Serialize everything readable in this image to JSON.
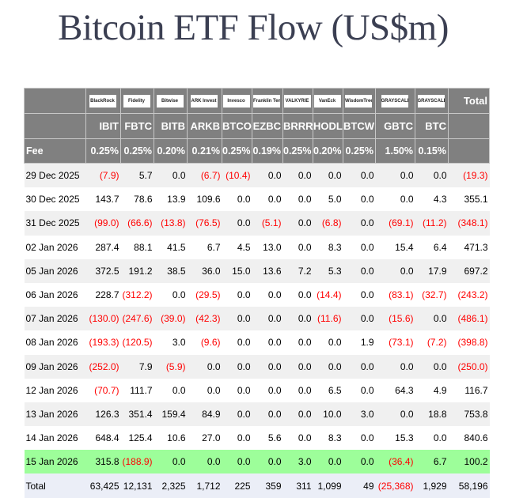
{
  "title": "Bitcoin ETF Flow (US$m)",
  "colors": {
    "header_bg": "#808080",
    "negative": "#ff0000",
    "highlight_row": "#9dfe9a",
    "total_row": "#ebeef7"
  },
  "issuers": [
    "BlackRock",
    "Fidelity",
    "Bitwise",
    "ARK Invest",
    "Invesco",
    "Franklin Templeton",
    "VALKYRIE",
    "VanEck",
    "WisdomTree",
    "GRAYSCALE",
    "GRAYSCALE"
  ],
  "total_header": "Total",
  "tickers": [
    "IBIT",
    "FBTC",
    "BITB",
    "ARKB",
    "BTCO",
    "EZBC",
    "BRRR",
    "HODL",
    "BTCW",
    "GBTC",
    "BTC"
  ],
  "fee_label": "Fee",
  "fees": [
    "0.25%",
    "0.25%",
    "0.20%",
    "0.21%",
    "0.25%",
    "0.19%",
    "0.25%",
    "0.20%",
    "0.25%",
    "1.50%",
    "0.15%"
  ],
  "rows": [
    {
      "date": "29 Dec 2025",
      "values": [
        "(7.9)",
        "5.7",
        "0.0",
        "(6.7)",
        "(10.4)",
        "0.0",
        "0.0",
        "0.0",
        "0.0",
        "0.0",
        "0.0",
        "(19.3)"
      ]
    },
    {
      "date": "30 Dec 2025",
      "values": [
        "143.7",
        "78.6",
        "13.9",
        "109.6",
        "0.0",
        "0.0",
        "0.0",
        "5.0",
        "0.0",
        "0.0",
        "4.3",
        "355.1"
      ]
    },
    {
      "date": "31 Dec 2025",
      "values": [
        "(99.0)",
        "(66.6)",
        "(13.8)",
        "(76.5)",
        "0.0",
        "(5.1)",
        "0.0",
        "(6.8)",
        "0.0",
        "(69.1)",
        "(11.2)",
        "(348.1)"
      ]
    },
    {
      "date": "02 Jan 2026",
      "values": [
        "287.4",
        "88.1",
        "41.5",
        "6.7",
        "4.5",
        "13.0",
        "0.0",
        "8.3",
        "0.0",
        "15.4",
        "6.4",
        "471.3"
      ]
    },
    {
      "date": "05 Jan 2026",
      "values": [
        "372.5",
        "191.2",
        "38.5",
        "36.0",
        "15.0",
        "13.6",
        "7.2",
        "5.3",
        "0.0",
        "0.0",
        "17.9",
        "697.2"
      ]
    },
    {
      "date": "06 Jan 2026",
      "values": [
        "228.7",
        "(312.2)",
        "0.0",
        "(29.5)",
        "0.0",
        "0.0",
        "0.0",
        "(14.4)",
        "0.0",
        "(83.1)",
        "(32.7)",
        "(243.2)"
      ]
    },
    {
      "date": "07 Jan 2026",
      "values": [
        "(130.0)",
        "(247.6)",
        "(39.0)",
        "(42.3)",
        "0.0",
        "0.0",
        "0.0",
        "(11.6)",
        "0.0",
        "(15.6)",
        "0.0",
        "(486.1)"
      ]
    },
    {
      "date": "08 Jan 2026",
      "values": [
        "(193.3)",
        "(120.5)",
        "3.0",
        "(9.6)",
        "0.0",
        "0.0",
        "0.0",
        "0.0",
        "1.9",
        "(73.1)",
        "(7.2)",
        "(398.8)"
      ]
    },
    {
      "date": "09 Jan 2026",
      "values": [
        "(252.0)",
        "7.9",
        "(5.9)",
        "0.0",
        "0.0",
        "0.0",
        "0.0",
        "0.0",
        "0.0",
        "0.0",
        "0.0",
        "(250.0)"
      ]
    },
    {
      "date": "12 Jan 2026",
      "values": [
        "(70.7)",
        "111.7",
        "0.0",
        "0.0",
        "0.0",
        "0.0",
        "0.0",
        "6.5",
        "0.0",
        "64.3",
        "4.9",
        "116.7"
      ]
    },
    {
      "date": "13 Jan 2026",
      "values": [
        "126.3",
        "351.4",
        "159.4",
        "84.9",
        "0.0",
        "0.0",
        "0.0",
        "10.0",
        "3.0",
        "0.0",
        "18.8",
        "753.8"
      ]
    },
    {
      "date": "14 Jan 2026",
      "values": [
        "648.4",
        "125.4",
        "10.6",
        "27.0",
        "0.0",
        "5.6",
        "0.0",
        "8.3",
        "0.0",
        "15.3",
        "0.0",
        "840.6"
      ]
    },
    {
      "date": "15 Jan 2026",
      "values": [
        "315.8",
        "(188.9)",
        "0.0",
        "0.0",
        "0.0",
        "0.0",
        "3.0",
        "0.0",
        "0.0",
        "(36.4)",
        "6.7",
        "100.2"
      ],
      "highlight": true
    }
  ],
  "total": {
    "label": "Total",
    "values": [
      "63,425",
      "12,131",
      "2,325",
      "1,712",
      "225",
      "359",
      "311",
      "1,099",
      "49",
      "(25,368)",
      "1,929",
      "58,196"
    ]
  }
}
